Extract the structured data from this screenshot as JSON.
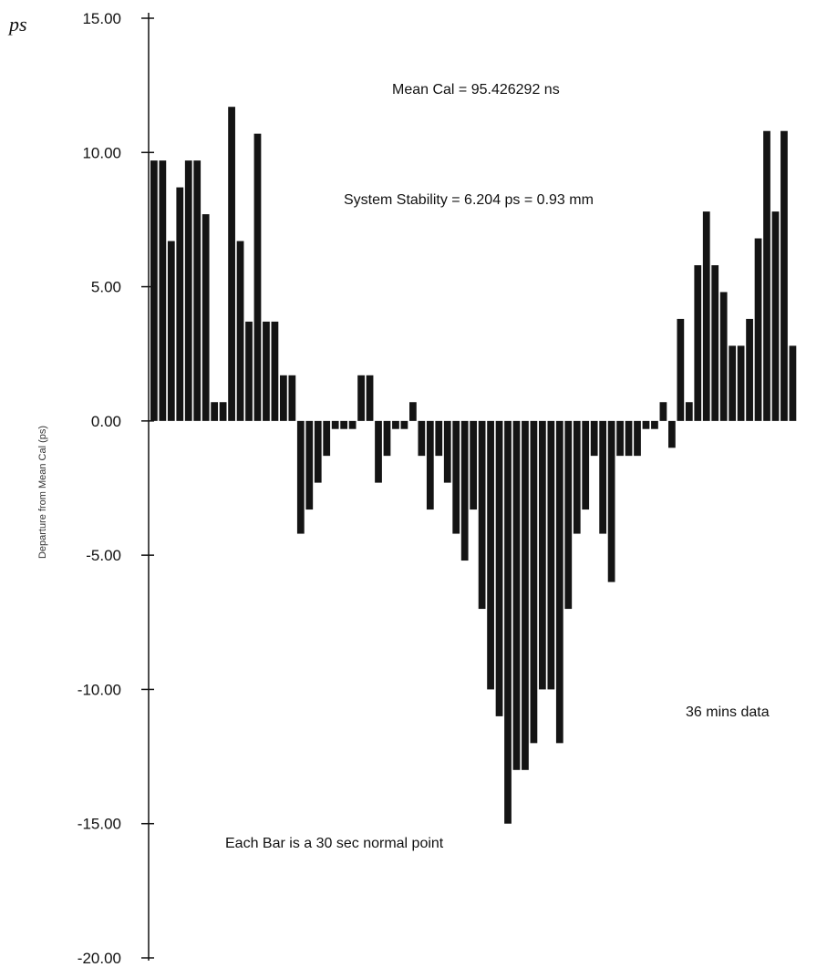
{
  "unit_mark": "ps",
  "chart_data": {
    "type": "bar",
    "ylabel": "Departure from Mean Cal (ps)",
    "ylim": [
      -20,
      15
    ],
    "yticks": [
      {
        "value": 15,
        "label": "15.00"
      },
      {
        "value": 10,
        "label": "10.00"
      },
      {
        "value": 5,
        "label": "5.00"
      },
      {
        "value": 0,
        "label": "0.00"
      },
      {
        "value": -5,
        "label": "-5.00"
      },
      {
        "value": -10,
        "label": "-10.00"
      },
      {
        "value": -15,
        "label": "-15.00"
      },
      {
        "value": -20,
        "label": "-20.00"
      }
    ],
    "annotations": {
      "mean_cal": "Mean Cal = 95.426292 ns",
      "stability": "System Stability = 6.204 ps = 0.93 mm",
      "duration": "36 mins data",
      "bar_note": "Each Bar is a 30 sec normal point"
    },
    "values": [
      9.7,
      9.7,
      6.7,
      8.7,
      9.7,
      9.7,
      7.7,
      0.7,
      0.7,
      11.7,
      6.7,
      3.7,
      10.7,
      3.7,
      3.7,
      1.7,
      1.7,
      -4.2,
      -3.3,
      -2.3,
      -1.3,
      -0.3,
      -0.3,
      -0.3,
      1.7,
      1.7,
      -2.3,
      -1.3,
      -0.3,
      -0.3,
      0.7,
      -1.3,
      -3.3,
      -1.3,
      -2.3,
      -4.2,
      -5.2,
      -3.3,
      -7.0,
      -10.0,
      -11.0,
      -15.0,
      -13.0,
      -13.0,
      -12.0,
      -10.0,
      -10.0,
      -12.0,
      -7.0,
      -4.2,
      -3.3,
      -1.3,
      -4.2,
      -6.0,
      -1.3,
      -1.3,
      -1.3,
      -0.3,
      -0.3,
      0.7,
      -1.0,
      3.8,
      0.7,
      5.8,
      7.8,
      5.8,
      4.8,
      2.8,
      2.8,
      3.8,
      6.8,
      10.8,
      7.8,
      10.8,
      2.8
    ]
  }
}
